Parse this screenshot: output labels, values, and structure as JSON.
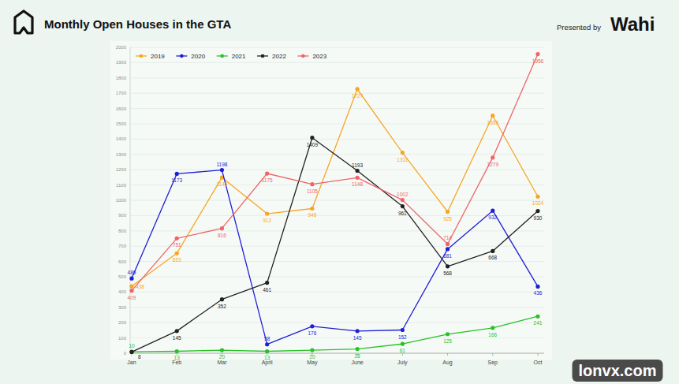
{
  "chart_data": {
    "type": "line",
    "title": "Monthly Open Houses in the GTA",
    "annotations": [
      "Presented by",
      "Wahi",
      "lonvx.com"
    ],
    "categories": [
      "Jan",
      "Feb",
      "Mar",
      "April",
      "May",
      "June",
      "July",
      "Aug",
      "Sep",
      "Oct"
    ],
    "series": [
      {
        "name": "2019",
        "color": "#f5a623",
        "values": [
          438,
          653,
          1149,
          912,
          946,
          1727,
          1311,
          925,
          1553,
          1024
        ]
      },
      {
        "name": "2020",
        "color": "#1f1fd6",
        "values": [
          489,
          1173,
          1198,
          58,
          176,
          145,
          152,
          681,
          932,
          436
        ]
      },
      {
        "name": "2021",
        "color": "#27c227",
        "values": [
          10,
          13,
          20,
          13,
          20,
          28,
          61,
          125,
          166,
          241
        ]
      },
      {
        "name": "2022",
        "color": "#222222",
        "values": [
          8,
          145,
          352,
          461,
          1409,
          1193,
          961,
          568,
          668,
          930
        ]
      },
      {
        "name": "2023",
        "color": "#ef6468",
        "values": [
          409,
          751,
          816,
          1175,
          1105,
          1148,
          1002,
          714,
          1279,
          1956
        ]
      }
    ],
    "ylim": [
      0,
      2000
    ],
    "yticks": [
      0,
      100,
      200,
      300,
      400,
      500,
      600,
      700,
      800,
      900,
      1000,
      1100,
      1200,
      1300,
      1400,
      1500,
      1600,
      1700,
      1800,
      1900,
      2000
    ],
    "grid": true,
    "legend": "top-left",
    "data_labels": true,
    "marker": "circle"
  }
}
